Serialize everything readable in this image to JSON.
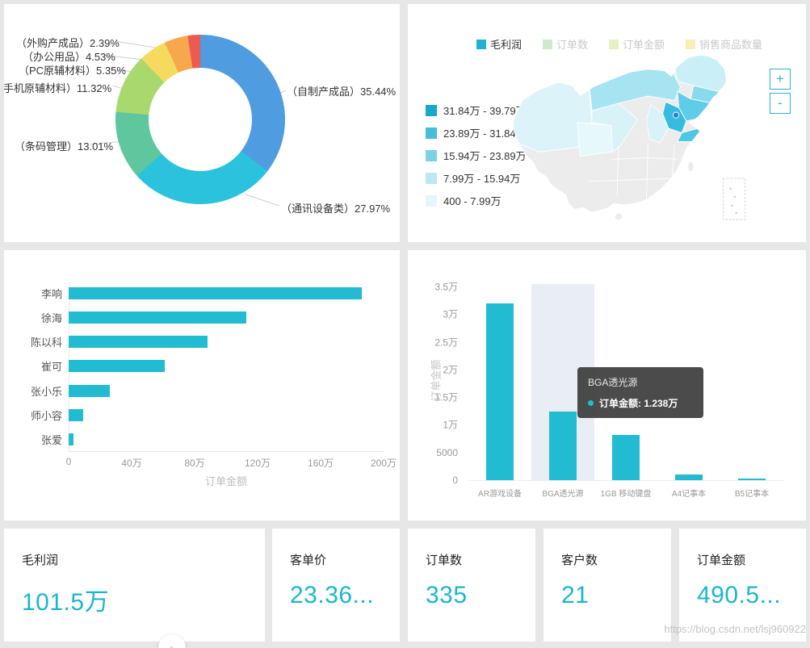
{
  "colors": {
    "accent": "#1bb6cb",
    "bar": "#22bcd2",
    "tooltip_bg": "#373737",
    "map_active_tab": "#1fb0d2"
  },
  "watermark": "https://blog.csdn.net/lsj960922",
  "collapse_icon": "«",
  "kpi_cards": [
    {
      "title": "毛利润",
      "value": "101.5万"
    },
    {
      "title": "客单价",
      "value": "23.36..."
    },
    {
      "title": "订单数",
      "value": "335"
    },
    {
      "title": "客户数",
      "value": "21"
    },
    {
      "title": "订单金额",
      "value": "490.5..."
    }
  ],
  "chart_data": [
    {
      "type": "pie",
      "subtype": "donut",
      "labels": [
        "自制产成品",
        "通讯设备类",
        "条码管理",
        "手机原辅材料",
        "PC原辅材料",
        "办公用品",
        "外购产成品"
      ],
      "values": [
        35.44,
        27.97,
        13.01,
        11.32,
        5.35,
        4.53,
        2.39
      ],
      "colors": [
        "#4f9ce0",
        "#2ac2dc",
        "#5ec79e",
        "#a9d96e",
        "#f6d95f",
        "#f7a84d",
        "#ee5a52"
      ],
      "display_labels": [
        "（外购产成品）2.39%",
        "（办公用品）4.53%",
        "（PC原辅材料）5.35%",
        "（手机原辅材料）11.32%",
        "（条码管理）13.01%",
        "（自制产成品）35.44%",
        "（通讯设备类）27.97%"
      ]
    },
    {
      "type": "heatmap",
      "subtype": "china-choropleth-map",
      "metric_tabs": [
        {
          "label": "毛利润",
          "color": "#1fb0d2",
          "active": true
        },
        {
          "label": "订单数",
          "color": "#8ed08e",
          "active": false
        },
        {
          "label": "订单金额",
          "color": "#c9dd77",
          "active": false
        },
        {
          "label": "销售商品数量",
          "color": "#eeda62",
          "active": false
        }
      ],
      "legend_ranges": [
        {
          "label": "31.84万 - 39.79万",
          "color": "#17a9cc"
        },
        {
          "label": "23.89万 - 31.84万",
          "color": "#45bedc"
        },
        {
          "label": "15.94万 - 23.89万",
          "color": "#7bd2e6"
        },
        {
          "label": "7.99万 - 15.94万",
          "color": "#bbe9f3"
        },
        {
          "label": "400 - 7.99万",
          "color": "#e4f7fb"
        }
      ],
      "zoom_in": "+",
      "zoom_out": "-"
    },
    {
      "type": "bar",
      "orientation": "horizontal",
      "categories": [
        "李响",
        "徐海",
        "陈以科",
        "崔可",
        "张小乐",
        "师小容",
        "张爱"
      ],
      "values_wan": [
        186,
        113,
        88,
        61,
        26,
        9,
        3
      ],
      "xlim_wan": [
        0,
        200
      ],
      "xtick_labels": [
        "0",
        "40万",
        "80万",
        "120万",
        "160万",
        "200万"
      ],
      "xlabel": "订单金额"
    },
    {
      "type": "bar",
      "orientation": "vertical",
      "categories": [
        "AR游戏设备",
        "BGA透光源",
        "1GB 移动键盘",
        "A4记事本",
        "B5记事本"
      ],
      "values_wan": [
        3.19,
        1.238,
        0.81,
        0.1,
        0.03
      ],
      "ylim_wan": [
        0,
        3.5
      ],
      "ytick_labels": [
        "0",
        "5000",
        "1万",
        "1.5万",
        "2万",
        "2.5万",
        "3万",
        "3.5万"
      ],
      "ylabel": "订单金额",
      "highlight_index": 1,
      "tooltip": {
        "title": "BGA透光源",
        "metric": "订单金额",
        "value": "1.238万",
        "text": "订单金额: 1.238万"
      }
    }
  ]
}
